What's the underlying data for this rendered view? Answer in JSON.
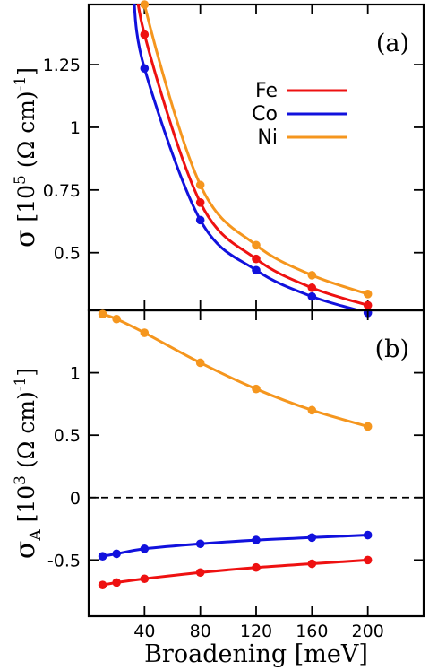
{
  "chart_data": [
    {
      "type": "line",
      "panel_label": "(a)",
      "ylabel": {
        "symbol": "σ",
        "unit_open": "[10",
        "unit_exp": "5",
        "unit_mid": " (Ω cm)",
        "unit_exp2": "-1",
        "unit_close": "]"
      },
      "xlim": [
        0,
        240
      ],
      "ylim": [
        0.27,
        1.49
      ],
      "yticks": [
        0.5,
        0.75,
        1,
        1.25
      ],
      "ytick_labels": [
        "0.5",
        "0.75",
        "1",
        "1.25"
      ],
      "legend_position": "top-right",
      "series": [
        {
          "name": "Fe",
          "color": "#ee1111",
          "x": [
            40,
            80,
            120,
            160,
            200
          ],
          "y": [
            1.37,
            0.7,
            0.475,
            0.36,
            0.29
          ]
        },
        {
          "name": "Co",
          "color": "#1111dd",
          "x": [
            40,
            80,
            120,
            160,
            200
          ],
          "y": [
            1.235,
            0.63,
            0.43,
            0.325,
            0.26
          ]
        },
        {
          "name": "Ni",
          "color": "#f5961e",
          "x": [
            40,
            80,
            120,
            160,
            200
          ],
          "y": [
            1.49,
            0.77,
            0.53,
            0.41,
            0.335
          ]
        }
      ]
    },
    {
      "type": "line",
      "panel_label": "(b)",
      "xlabel": "Broadening [meV]",
      "ylabel": {
        "symbol": "σ",
        "subscript": "A",
        "unit_open": "[10",
        "unit_exp": "3",
        "unit_mid": " (Ω cm)",
        "unit_exp2": "-1",
        "unit_close": "]"
      },
      "xlim": [
        0,
        240
      ],
      "ylim": [
        -0.95,
        1.5
      ],
      "xticks": [
        40,
        80,
        120,
        160,
        200
      ],
      "xtick_labels": [
        "40",
        "80",
        "120",
        "160",
        "200"
      ],
      "yticks": [
        -0.5,
        0,
        0.5,
        1
      ],
      "ytick_labels": [
        "-0.5",
        "0",
        "0.5",
        "1"
      ],
      "zero_line": "dashed",
      "series": [
        {
          "name": "Ni",
          "color": "#f5961e",
          "x": [
            10,
            20,
            40,
            80,
            120,
            160,
            200
          ],
          "y": [
            1.47,
            1.43,
            1.32,
            1.08,
            0.87,
            0.7,
            0.57
          ]
        },
        {
          "name": "Co",
          "color": "#1111dd",
          "x": [
            10,
            20,
            40,
            80,
            120,
            160,
            200
          ],
          "y": [
            -0.47,
            -0.45,
            -0.41,
            -0.37,
            -0.34,
            -0.32,
            -0.3
          ]
        },
        {
          "name": "Fe",
          "color": "#ee1111",
          "x": [
            10,
            20,
            40,
            80,
            120,
            160,
            200
          ],
          "y": [
            -0.7,
            -0.68,
            -0.65,
            -0.6,
            -0.56,
            -0.53,
            -0.5
          ]
        }
      ]
    }
  ]
}
